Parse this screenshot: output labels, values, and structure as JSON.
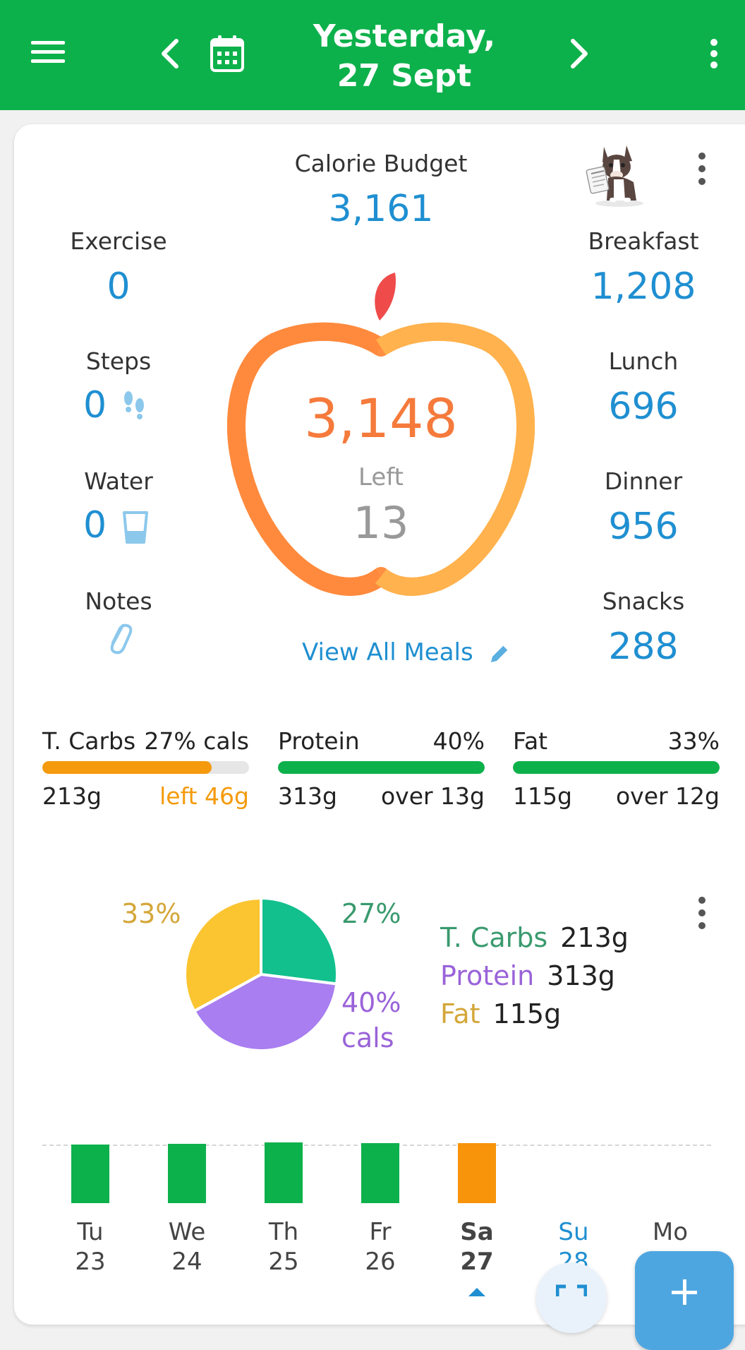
{
  "header": {
    "date_line1": "Yesterday,",
    "date_line2": "27 Sept",
    "icons": [
      "menu-icon",
      "chevron-left-icon",
      "calendar-icon",
      "chevron-right-icon",
      "more-vert-icon"
    ]
  },
  "budget": {
    "label": "Calorie Budget",
    "value": "3,161"
  },
  "apple": {
    "eaten": "3,148",
    "left_label": "Left",
    "left_value": "13"
  },
  "left_stats": [
    {
      "label": "Exercise",
      "value": "0"
    },
    {
      "label": "Steps",
      "value": "0"
    },
    {
      "label": "Water",
      "value": "0"
    },
    {
      "label": "Notes",
      "value": ""
    }
  ],
  "meals": [
    {
      "label": "Breakfast",
      "value": "1,208"
    },
    {
      "label": "Lunch",
      "value": "696"
    },
    {
      "label": "Dinner",
      "value": "956"
    },
    {
      "label": "Snacks",
      "value": "288"
    }
  ],
  "view_all_meals": "View All Meals",
  "macros": [
    {
      "name": "T. Carbs",
      "pct": "27% cals",
      "grams": "213g",
      "delta": "left 46g",
      "fill": 0.82,
      "color": "#f59a0c",
      "delta_color": "#f59a0c"
    },
    {
      "name": "Protein",
      "pct": "40%",
      "grams": "313g",
      "delta": "over 13g",
      "fill": 1.0,
      "color": "#0db14b",
      "delta_color": "#222222"
    },
    {
      "name": "Fat",
      "pct": "33%",
      "grams": "115g",
      "delta": "over 12g",
      "fill": 1.0,
      "color": "#0db14b",
      "delta_color": "#222222"
    }
  ],
  "chart_data": {
    "type": "pie",
    "slices": [
      {
        "name": "T. Carbs",
        "percent": 27,
        "grams": "213g",
        "label": "27%",
        "color": "#12c08d"
      },
      {
        "name": "Protein",
        "percent": 40,
        "grams": "313g",
        "label": "40%",
        "label2": "cals",
        "color": "#a87ef0"
      },
      {
        "name": "Fat",
        "percent": 33,
        "grams": "115g",
        "label": "33%",
        "color": "#fbc531"
      }
    ],
    "legend_colors": {
      "T. Carbs": "#3a9a6e",
      "Protein": "#9a63d9",
      "Fat": "#d4a73a"
    }
  },
  "week": {
    "days": [
      {
        "dow": "Tu",
        "date": "23",
        "level": 0.92,
        "color": "#0db14b"
      },
      {
        "dow": "We",
        "date": "24",
        "level": 0.93,
        "color": "#0db14b"
      },
      {
        "dow": "Th",
        "date": "25",
        "level": 0.96,
        "color": "#0db14b"
      },
      {
        "dow": "Fr",
        "date": "26",
        "level": 0.94,
        "color": "#0db14b"
      },
      {
        "dow": "Sa",
        "date": "27",
        "level": 0.94,
        "color": "#f7940a",
        "selected": true
      },
      {
        "dow": "Su",
        "date": "28",
        "level": 0,
        "color": "#1f8fd1",
        "today": true
      },
      {
        "dow": "Mo",
        "date": "",
        "level": 0,
        "color": "#444444"
      }
    ]
  },
  "colors": {
    "header": "#0db14b",
    "value_blue": "#1f8fd1",
    "apple_orange": "#ff8a3d",
    "apple_light": "#ffb24d",
    "leaf": "#ef4b4b"
  }
}
